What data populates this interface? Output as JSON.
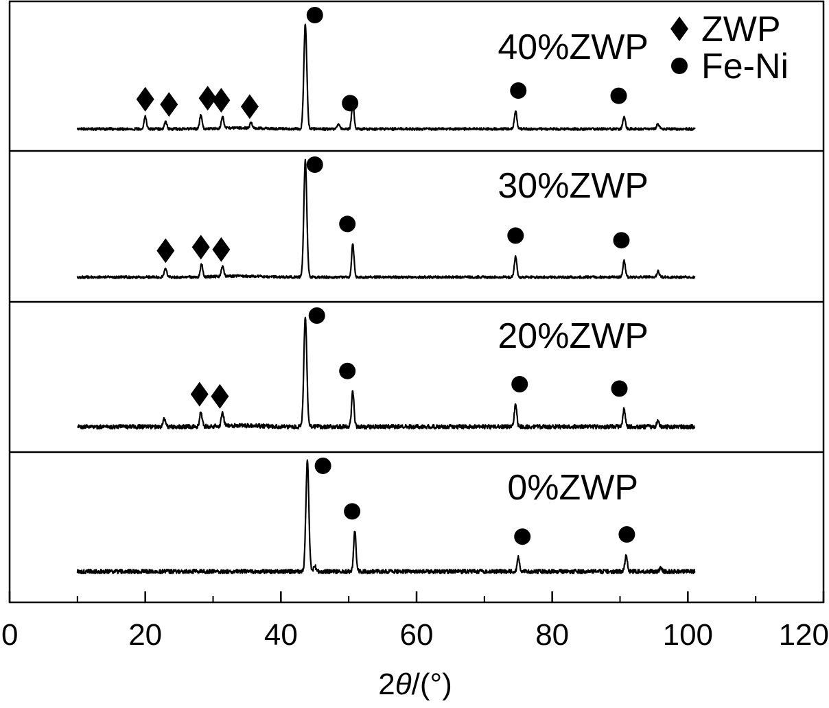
{
  "chart_data": {
    "type": "line",
    "title": "",
    "xlabel": "2θ/(°)",
    "xlabel_parts": {
      "prefix": "2",
      "symbol": "θ",
      "suffix": "/(°)"
    },
    "ylabel": "",
    "xlim": [
      0,
      120
    ],
    "x_major_ticks": [
      0,
      20,
      40,
      60,
      80,
      100,
      120
    ],
    "x_tick_labels": [
      "0",
      "20",
      "40",
      "60",
      "80",
      "100",
      "120"
    ],
    "x_minor_ticks": [
      10,
      30,
      50,
      70,
      90,
      110
    ],
    "grid": false,
    "legend": {
      "placement": "top-right",
      "entries": [
        {
          "marker": "diamond",
          "label": "ZWP"
        },
        {
          "marker": "circle",
          "label": "Fe-Ni"
        }
      ]
    },
    "colors": {
      "line": "#000000",
      "background": "#ffffff"
    },
    "scan_range": [
      10,
      101
    ],
    "series": [
      {
        "name": "40%ZWP",
        "label": "40%ZWP",
        "peaks": [
          {
            "x": 20.0,
            "height": 0.12
          },
          {
            "x": 23.0,
            "height": 0.07
          },
          {
            "x": 28.2,
            "height": 0.13
          },
          {
            "x": 31.4,
            "height": 0.11
          },
          {
            "x": 35.6,
            "height": 0.05
          },
          {
            "x": 43.6,
            "height": 1.0
          },
          {
            "x": 48.5,
            "height": 0.05
          },
          {
            "x": 50.6,
            "height": 0.25
          },
          {
            "x": 74.6,
            "height": 0.17
          },
          {
            "x": 90.6,
            "height": 0.12
          },
          {
            "x": 95.6,
            "height": 0.05
          }
        ],
        "zwp_markers": [
          20.0,
          23.5,
          29.2,
          31.2,
          35.4
        ],
        "feni_markers": [
          45.0,
          50.2,
          75.0,
          89.8
        ]
      },
      {
        "name": "30%ZWP",
        "label": "30%ZWP",
        "peaks": [
          {
            "x": 23.0,
            "height": 0.08
          },
          {
            "x": 28.3,
            "height": 0.11
          },
          {
            "x": 31.4,
            "height": 0.09
          },
          {
            "x": 43.6,
            "height": 1.0
          },
          {
            "x": 50.6,
            "height": 0.28
          },
          {
            "x": 74.6,
            "height": 0.18
          },
          {
            "x": 90.6,
            "height": 0.14
          },
          {
            "x": 95.6,
            "height": 0.05
          }
        ],
        "zwp_markers": [
          23.0,
          28.2,
          31.2
        ],
        "feni_markers": [
          45.0,
          49.8,
          74.6,
          90.2
        ]
      },
      {
        "name": "20%ZWP",
        "label": "20%ZWP",
        "peaks": [
          {
            "x": 22.8,
            "height": 0.08
          },
          {
            "x": 28.2,
            "height": 0.14
          },
          {
            "x": 31.4,
            "height": 0.12
          },
          {
            "x": 43.6,
            "height": 1.0
          },
          {
            "x": 50.6,
            "height": 0.32
          },
          {
            "x": 74.6,
            "height": 0.2
          },
          {
            "x": 90.6,
            "height": 0.16
          },
          {
            "x": 95.6,
            "height": 0.05
          }
        ],
        "zwp_markers": [
          28.0,
          31.0
        ],
        "feni_markers": [
          45.3,
          49.8,
          75.2,
          89.9
        ]
      },
      {
        "name": "0%ZWP",
        "label": "0%ZWP",
        "peaks": [
          {
            "x": 43.9,
            "height": 1.0
          },
          {
            "x": 45.0,
            "height": 0.05
          },
          {
            "x": 50.9,
            "height": 0.36
          },
          {
            "x": 75.0,
            "height": 0.13
          },
          {
            "x": 90.9,
            "height": 0.15
          },
          {
            "x": 96.0,
            "height": 0.03
          }
        ],
        "zwp_markers": [],
        "feni_markers": [
          46.2,
          50.5,
          75.6,
          91.0
        ]
      }
    ]
  }
}
